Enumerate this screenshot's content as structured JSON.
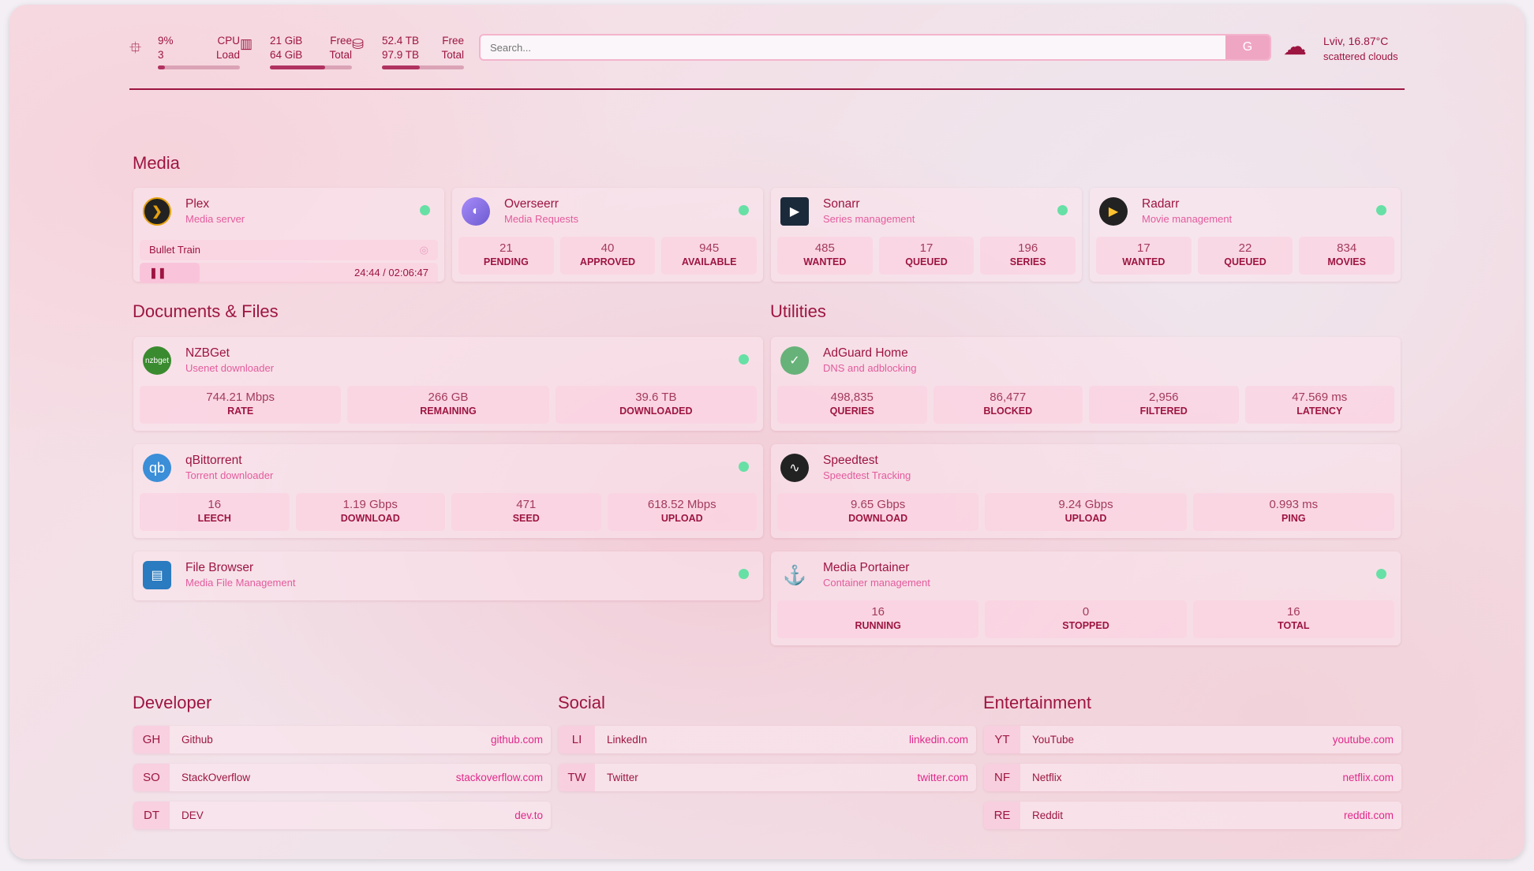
{
  "header": {
    "cpu": {
      "icon": "cpu-icon",
      "value1": "9%",
      "value2": "3",
      "label1": "CPU",
      "label2": "Load",
      "percent": 9
    },
    "memory": {
      "icon": "memory-icon",
      "value1": "21 GiB",
      "value2": "64 GiB",
      "label1": "Free",
      "label2": "Total",
      "percent": 67
    },
    "disk": {
      "icon": "hard-drive-icon",
      "value1": "52.4 TB",
      "value2": "97.9 TB",
      "label1": "Free",
      "label2": "Total",
      "percent": 46
    },
    "search": {
      "placeholder": "Search...",
      "button": "G"
    },
    "weather": {
      "icon": "cloud-sun-icon",
      "location_temp": "Lviv, 16.87°C",
      "condition": "scattered clouds"
    }
  },
  "colors": {
    "primary": "#9d1541",
    "accent": "#e0288a",
    "status_ok": "#67e0a6"
  },
  "sections": {
    "media": "Media",
    "docs": "Documents & Files",
    "utilities": "Utilities",
    "developer": "Developer",
    "social": "Social",
    "entertainment": "Entertainment"
  },
  "plex": {
    "name": "Plex",
    "desc": "Media server",
    "now_playing": "Bullet Train",
    "time": "24:44 / 02:06:47",
    "progress": 20
  },
  "services": [
    {
      "id": "overseerr",
      "name": "Overseerr",
      "desc": "Media Requests",
      "icon": "overseerr-icon",
      "stats": [
        {
          "n": "21",
          "t": "PENDING"
        },
        {
          "n": "40",
          "t": "APPROVED"
        },
        {
          "n": "945",
          "t": "AVAILABLE"
        }
      ]
    },
    {
      "id": "sonarr",
      "name": "Sonarr",
      "desc": "Series management",
      "icon": "sonarr-icon",
      "stats": [
        {
          "n": "485",
          "t": "WANTED"
        },
        {
          "n": "17",
          "t": "QUEUED"
        },
        {
          "n": "196",
          "t": "SERIES"
        }
      ]
    },
    {
      "id": "radarr",
      "name": "Radarr",
      "desc": "Movie management",
      "icon": "radarr-icon",
      "stats": [
        {
          "n": "17",
          "t": "WANTED"
        },
        {
          "n": "22",
          "t": "QUEUED"
        },
        {
          "n": "834",
          "t": "MOVIES"
        }
      ]
    },
    {
      "id": "nzbget",
      "name": "NZBGet",
      "desc": "Usenet downloader",
      "icon": "nzbget-icon",
      "logo_text": "nzbget",
      "stats": [
        {
          "n": "744.21 Mbps",
          "t": "RATE"
        },
        {
          "n": "266 GB",
          "t": "REMAINING"
        },
        {
          "n": "39.6 TB",
          "t": "DOWNLOADED"
        }
      ]
    },
    {
      "id": "qbittorrent",
      "name": "qBittorrent",
      "desc": "Torrent downloader",
      "icon": "qbittorrent-icon",
      "logo_text": "qb",
      "stats": [
        {
          "n": "16",
          "t": "LEECH"
        },
        {
          "n": "1.19 Gbps",
          "t": "DOWNLOAD"
        },
        {
          "n": "471",
          "t": "SEED"
        },
        {
          "n": "618.52 Mbps",
          "t": "UPLOAD"
        }
      ]
    },
    {
      "id": "filebrowser",
      "name": "File Browser",
      "desc": "Media File Management",
      "icon": "file-browser-icon",
      "stats": []
    },
    {
      "id": "adguard",
      "name": "AdGuard Home",
      "desc": "DNS and adblocking",
      "icon": "adguard-shield-icon",
      "nodot": true,
      "stats": [
        {
          "n": "498,835",
          "t": "QUERIES"
        },
        {
          "n": "86,477",
          "t": "BLOCKED"
        },
        {
          "n": "2,956",
          "t": "FILTERED"
        },
        {
          "n": "47.569 ms",
          "t": "LATENCY"
        }
      ]
    },
    {
      "id": "speedtest",
      "name": "Speedtest",
      "desc": "Speedtest Tracking",
      "icon": "speedtest-icon",
      "nodot": true,
      "stats": [
        {
          "n": "9.65 Gbps",
          "t": "DOWNLOAD"
        },
        {
          "n": "9.24 Gbps",
          "t": "UPLOAD"
        },
        {
          "n": "0.993 ms",
          "t": "PING"
        }
      ]
    },
    {
      "id": "portainer",
      "name": "Media Portainer",
      "desc": "Container management",
      "icon": "portainer-icon",
      "stats": [
        {
          "n": "16",
          "t": "RUNNING"
        },
        {
          "n": "0",
          "t": "STOPPED"
        },
        {
          "n": "16",
          "t": "TOTAL"
        }
      ]
    }
  ],
  "bookmarks": [
    [
      {
        "ab": "GH",
        "name": "Github",
        "url": "github.com"
      },
      {
        "ab": "SO",
        "name": "StackOverflow",
        "url": "stackoverflow.com"
      },
      {
        "ab": "DT",
        "name": "DEV",
        "url": "dev.to"
      }
    ],
    [
      {
        "ab": "LI",
        "name": "LinkedIn",
        "url": "linkedin.com"
      },
      {
        "ab": "TW",
        "name": "Twitter",
        "url": "twitter.com"
      }
    ],
    [
      {
        "ab": "YT",
        "name": "YouTube",
        "url": "youtube.com"
      },
      {
        "ab": "NF",
        "name": "Netflix",
        "url": "netflix.com"
      },
      {
        "ab": "RE",
        "name": "Reddit",
        "url": "reddit.com"
      }
    ]
  ]
}
